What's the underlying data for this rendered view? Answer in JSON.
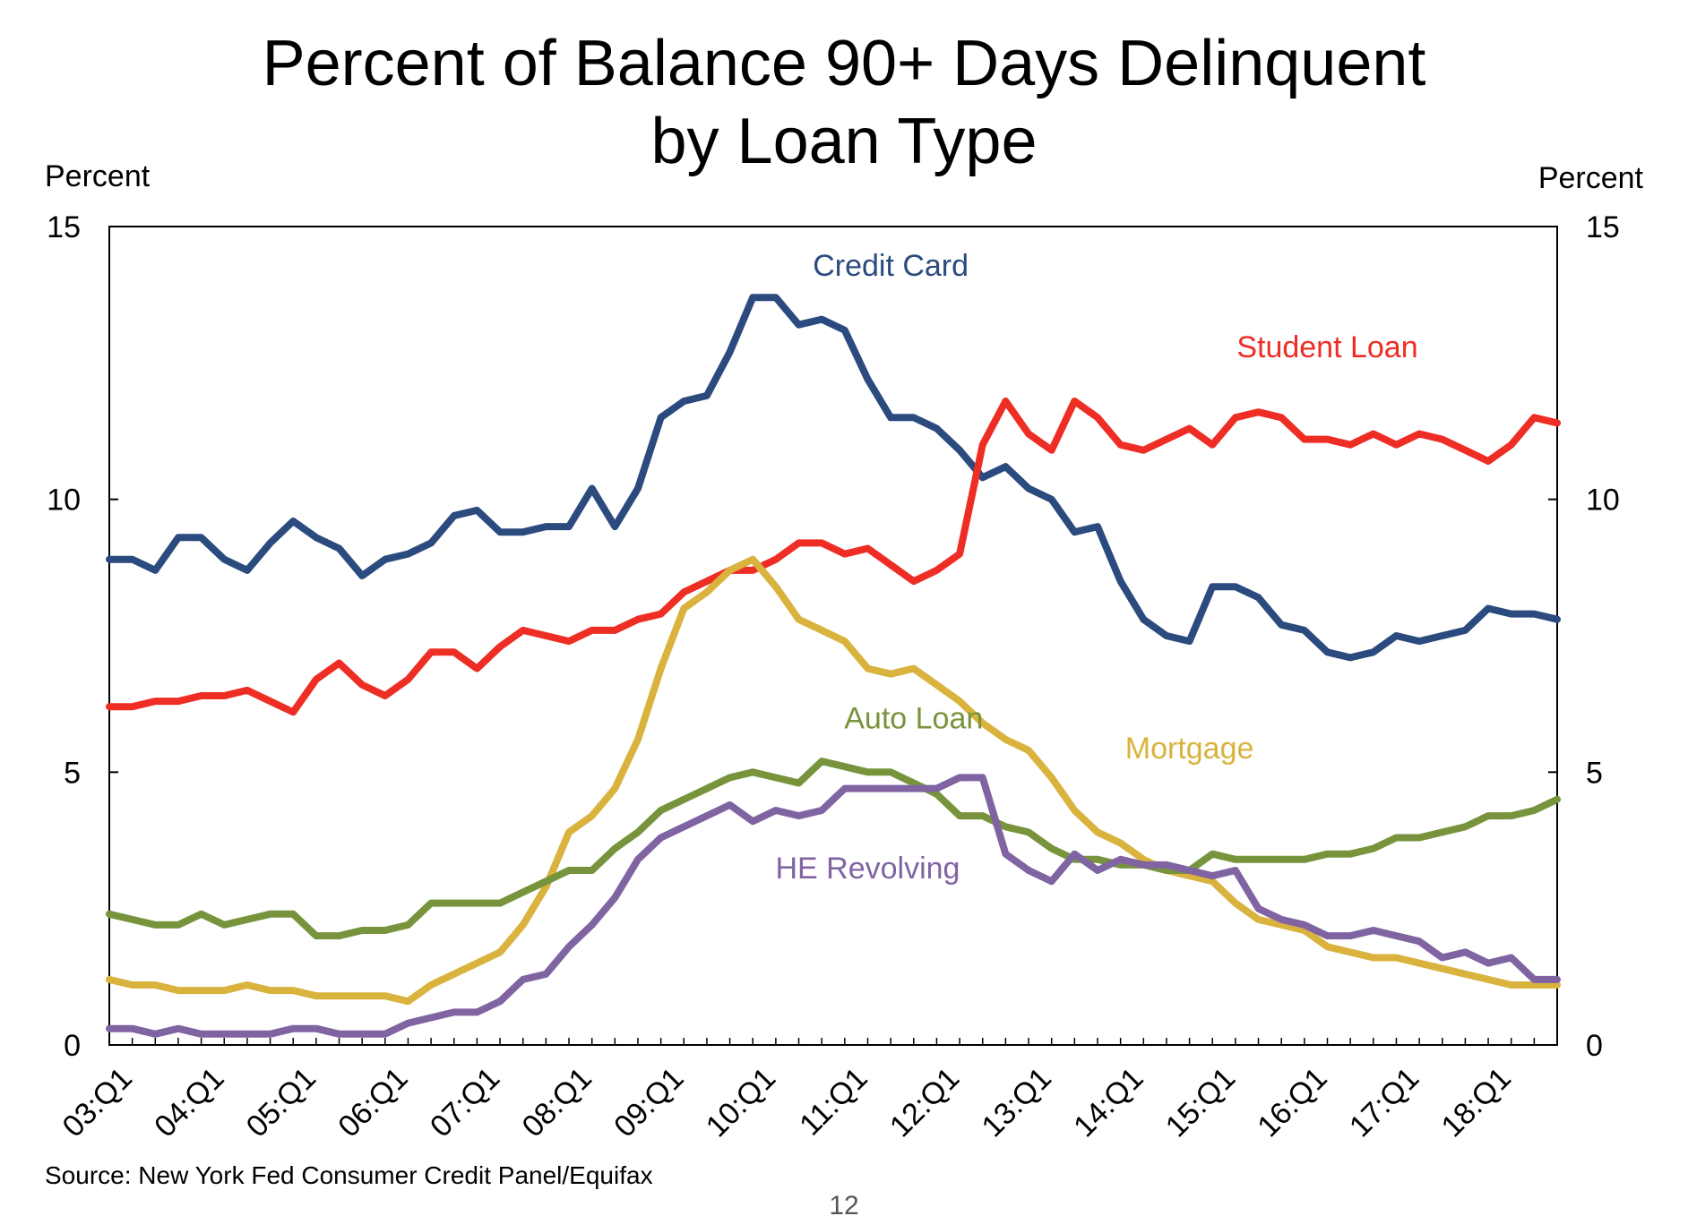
{
  "chart_data": {
    "type": "line",
    "title_line1": "Percent of Balance 90+ Days Delinquent",
    "title_line2": "by Loan Type",
    "ylabel_left": "Percent",
    "ylabel_right": "Percent",
    "ylim": [
      0,
      15
    ],
    "yticks": [
      0,
      5,
      10,
      15
    ],
    "ytick_labels": [
      "0",
      "5",
      "10",
      "15"
    ],
    "x_range": [
      "2003:Q1",
      "2018:Q4"
    ],
    "x_quarter_count": 64,
    "x_tick_labels": [
      "03:Q1",
      "04:Q1",
      "05:Q1",
      "06:Q1",
      "07:Q1",
      "08:Q1",
      "09:Q1",
      "10:Q1",
      "11:Q1",
      "12:Q1",
      "13:Q1",
      "14:Q1",
      "15:Q1",
      "16:Q1",
      "17:Q1",
      "18:Q1"
    ],
    "grid": false,
    "legend": "inline labels",
    "source": "Source: New York Fed Consumer Credit Panel/Equifax",
    "page_number": "12",
    "series": [
      {
        "name": "Credit Card",
        "color": "#2b4a7e",
        "values": [
          8.9,
          8.9,
          8.7,
          9.3,
          9.3,
          8.9,
          8.7,
          9.2,
          9.6,
          9.3,
          9.1,
          8.6,
          8.9,
          9.0,
          9.2,
          9.7,
          9.8,
          9.4,
          9.4,
          9.5,
          9.5,
          10.2,
          9.5,
          10.2,
          11.5,
          11.8,
          11.9,
          12.7,
          13.7,
          13.7,
          13.2,
          13.3,
          13.1,
          12.2,
          11.5,
          11.5,
          11.3,
          10.9,
          10.4,
          10.6,
          10.2,
          10.0,
          9.4,
          9.5,
          8.5,
          7.8,
          7.5,
          7.4,
          8.4,
          8.4,
          8.2,
          7.7,
          7.6,
          7.2,
          7.1,
          7.2,
          7.5,
          7.4,
          7.5,
          7.6,
          8.0,
          7.9,
          7.9,
          7.8
        ]
      },
      {
        "name": "Student Loan",
        "color": "#ee2d24",
        "values": [
          6.2,
          6.2,
          6.3,
          6.3,
          6.4,
          6.4,
          6.5,
          6.3,
          6.1,
          6.7,
          7.0,
          6.6,
          6.4,
          6.7,
          7.2,
          7.2,
          6.9,
          7.3,
          7.6,
          7.5,
          7.4,
          7.6,
          7.6,
          7.8,
          7.9,
          8.3,
          8.5,
          8.7,
          8.7,
          8.9,
          9.2,
          9.2,
          9.0,
          9.1,
          8.8,
          8.5,
          8.7,
          9.0,
          11.0,
          11.8,
          11.2,
          10.9,
          11.8,
          11.5,
          11.0,
          10.9,
          11.1,
          11.3,
          11.0,
          11.5,
          11.6,
          11.5,
          11.1,
          11.1,
          11.0,
          11.2,
          11.0,
          11.2,
          11.1,
          10.9,
          10.7,
          11.0,
          11.5,
          11.4
        ]
      },
      {
        "name": "Mortgage",
        "color": "#d9b33e",
        "values": [
          1.2,
          1.1,
          1.1,
          1.0,
          1.0,
          1.0,
          1.1,
          1.0,
          1.0,
          0.9,
          0.9,
          0.9,
          0.9,
          0.8,
          1.1,
          1.3,
          1.5,
          1.7,
          2.2,
          2.9,
          3.9,
          4.2,
          4.7,
          5.6,
          6.9,
          8.0,
          8.3,
          8.7,
          8.9,
          8.4,
          7.8,
          7.6,
          7.4,
          6.9,
          6.8,
          6.9,
          6.6,
          6.3,
          5.9,
          5.6,
          5.4,
          4.9,
          4.3,
          3.9,
          3.7,
          3.4,
          3.2,
          3.1,
          3.0,
          2.6,
          2.3,
          2.2,
          2.1,
          1.8,
          1.7,
          1.6,
          1.6,
          1.5,
          1.4,
          1.3,
          1.2,
          1.1,
          1.1,
          1.1
        ]
      },
      {
        "name": "Auto Loan",
        "color": "#77943c",
        "values": [
          2.4,
          2.3,
          2.2,
          2.2,
          2.4,
          2.2,
          2.3,
          2.4,
          2.4,
          2.0,
          2.0,
          2.1,
          2.1,
          2.2,
          2.6,
          2.6,
          2.6,
          2.6,
          2.8,
          3.0,
          3.2,
          3.2,
          3.6,
          3.9,
          4.3,
          4.5,
          4.7,
          4.9,
          5.0,
          4.9,
          4.8,
          5.2,
          5.1,
          5.0,
          5.0,
          4.8,
          4.6,
          4.2,
          4.2,
          4.0,
          3.9,
          3.6,
          3.4,
          3.4,
          3.3,
          3.3,
          3.2,
          3.2,
          3.5,
          3.4,
          3.4,
          3.4,
          3.4,
          3.5,
          3.5,
          3.6,
          3.8,
          3.8,
          3.9,
          4.0,
          4.2,
          4.2,
          4.3,
          4.5
        ]
      },
      {
        "name": "HE Revolving",
        "color": "#8064a2",
        "values": [
          0.3,
          0.3,
          0.2,
          0.3,
          0.2,
          0.2,
          0.2,
          0.2,
          0.3,
          0.3,
          0.2,
          0.2,
          0.2,
          0.4,
          0.5,
          0.6,
          0.6,
          0.8,
          1.2,
          1.3,
          1.8,
          2.2,
          2.7,
          3.4,
          3.8,
          4.0,
          4.2,
          4.4,
          4.1,
          4.3,
          4.2,
          4.3,
          4.7,
          4.7,
          4.7,
          4.7,
          4.7,
          4.9,
          4.9,
          3.5,
          3.2,
          3.0,
          3.5,
          3.2,
          3.4,
          3.3,
          3.3,
          3.2,
          3.1,
          3.2,
          2.5,
          2.3,
          2.2,
          2.0,
          2.0,
          2.1,
          2.0,
          1.9,
          1.6,
          1.7,
          1.5,
          1.6,
          1.2,
          1.2
        ]
      }
    ]
  }
}
